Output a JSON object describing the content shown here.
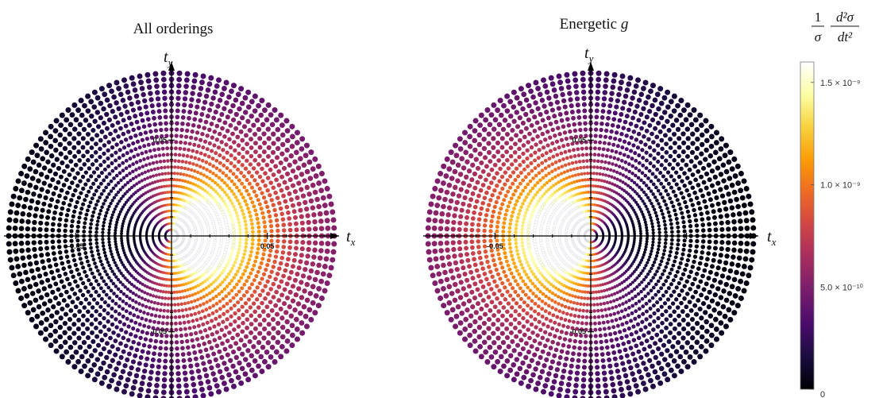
{
  "chart_data": [
    {
      "type": "scatter",
      "title": "All orderings",
      "title_var": "",
      "xlabel": "t",
      "xlabel_sub": "x",
      "ylabel": "t",
      "ylabel_sub": "y",
      "xlim": [
        -0.085,
        0.085
      ],
      "ylim": [
        -0.085,
        0.085
      ],
      "x_ticks": [
        {
          "value": -0.05,
          "label": "-0.05"
        },
        {
          "value": 0.05,
          "label": "0.05"
        }
      ],
      "y_ticks": [
        {
          "value": 0.05,
          "label": "0.05"
        },
        {
          "value": -0.05,
          "label": "-0.05"
        }
      ],
      "grid": "polar (rays + rings)",
      "rings": 26,
      "rays": 128,
      "max_radius": 0.085,
      "intensity_model": "peak at (+0.018, 0); lowest along the negative t_x direction",
      "peak_center": [
        0.018,
        0.0
      ]
    },
    {
      "type": "scatter",
      "title": "Energetic ",
      "title_var": "g",
      "xlabel": "t",
      "xlabel_sub": "x",
      "ylabel": "t",
      "ylabel_sub": "y",
      "xlim": [
        -0.085,
        0.085
      ],
      "ylim": [
        -0.085,
        0.085
      ],
      "x_ticks": [
        {
          "value": -0.05,
          "label": "-0.05"
        }
      ],
      "y_ticks": [
        {
          "value": 0.05,
          "label": "0.05"
        },
        {
          "value": -0.05,
          "label": "-0.05"
        }
      ],
      "grid": "polar (rays + rings)",
      "rings": 26,
      "rays": 128,
      "max_radius": 0.085,
      "intensity_model": "peak at (-0.018, 0); lowest along the positive t_x direction",
      "peak_center": [
        -0.018,
        0.0
      ]
    }
  ],
  "colorbar": {
    "title_num_left": "1",
    "title_den_left": "σ",
    "title_num_right": "d²σ",
    "title_den_right": "dt²",
    "min": 0,
    "max": 1.6e-09,
    "ticks": [
      {
        "value": 0,
        "label": "0"
      },
      {
        "value": 5e-10,
        "label": "5.0 × 10⁻¹⁰"
      },
      {
        "value": 1e-09,
        "label": "1.0 × 10⁻⁹"
      },
      {
        "value": 1.5e-09,
        "label": "1.5 × 10⁻⁹"
      }
    ],
    "colormap": "inferno",
    "colormap_stops": [
      "#000004",
      "#1b0c41",
      "#4a0c6b",
      "#781c6d",
      "#a52c60",
      "#cf4446",
      "#ed6925",
      "#fb9b06",
      "#f7d13d",
      "#fcffa4",
      "#ffffff"
    ]
  }
}
